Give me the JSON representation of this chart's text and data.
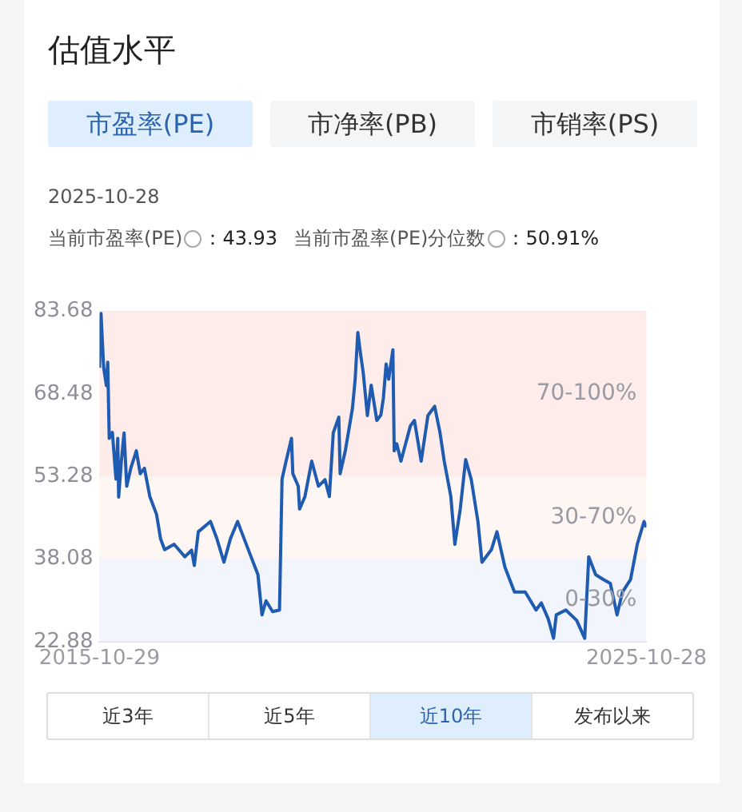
{
  "chart_data": {
    "type": "line",
    "title": "估值水平",
    "annotations": [
      "市盈率(PE)",
      "市净率(PB)",
      "市销率(PS)",
      "2025-10-28",
      "当前市盈率(PE)",
      "：43.93",
      "当前市盈率(PE)分位数",
      "：50.91%",
      "近3年",
      "近5年",
      "近10年",
      "发布以来"
    ],
    "x": [
      "2015-10-29",
      "2015-11-08",
      "2015-11-26",
      "2015-12-14",
      "2015-12-23",
      "2016-01-02",
      "2016-01-23",
      "2016-02-16",
      "2016-02-28",
      "2016-03-05",
      "2016-03-23",
      "2016-04-10",
      "2016-04-28",
      "2016-05-25",
      "2016-07-01",
      "2016-07-27",
      "2016-08-24",
      "2016-09-29",
      "2016-11-13",
      "2016-12-10",
      "2017-01-06",
      "2017-03-10",
      "2017-05-21",
      "2017-07-05",
      "2017-07-23",
      "2017-08-19",
      "2017-11-08",
      "2017-12-20",
      "2018-02-06",
      "2018-03-21",
      "2018-05-08",
      "2018-06-03",
      "2018-08-06",
      "2018-09-21",
      "2018-10-18",
      "2018-11-14",
      "2018-12-28",
      "2019-02-12",
      "2019-03-01",
      "2019-03-28",
      "2019-05-03",
      "2019-05-12",
      "2019-06-17",
      "2019-06-26",
      "2019-08-01",
      "2019-09-15",
      "2019-10-30",
      "2019-12-13",
      "2020-01-11",
      "2020-02-06",
      "2020-03-14",
      "2020-03-23",
      "2020-04-27",
      "2020-06-13",
      "2020-07-01",
      "2020-07-19",
      "2020-08-08",
      "2020-08-24",
      "2020-09-21",
      "2020-10-16",
      "2020-11-23",
      "2020-12-20",
      "2021-01-06",
      "2021-01-24",
      "2021-02-10",
      "2021-03-10",
      "2021-03-19",
      "2021-04-05",
      "2021-05-03",
      "2021-07-05",
      "2021-08-01",
      "2021-09-15",
      "2021-10-30",
      "2021-12-14",
      "2022-01-19",
      "2022-02-16",
      "2022-04-01",
      "2022-04-28",
      "2022-06-03",
      "2022-07-09",
      "2022-08-15",
      "2022-09-29",
      "2022-10-26",
      "2022-12-28",
      "2023-02-03",
      "2023-03-28",
      "2023-05-31",
      "2023-08-11",
      "2023-10-22",
      "2023-11-26",
      "2024-01-11",
      "2024-02-16",
      "2024-03-05",
      "2024-05-08",
      "2024-07-19",
      "2024-09-11",
      "2024-10-08",
      "2024-11-23",
      "2025-01-15",
      "2025-03-01",
      "2025-04-15",
      "2025-05-21",
      "2025-07-14",
      "2025-08-28",
      "2025-10-12",
      "2025-10-28"
    ],
    "series": [
      {
        "color": "#1f5bb0",
        "values": [
          73.3,
          83.3,
          73.3,
          70.0,
          74.3,
          60.3,
          61.4,
          52.8,
          60.3,
          49.5,
          56.1,
          61.3,
          51.5,
          54.8,
          58.0,
          53.8,
          54.8,
          49.6,
          46.3,
          41.8,
          39.8,
          40.8,
          38.5,
          39.7,
          36.9,
          43.1,
          45.0,
          41.9,
          37.5,
          41.8,
          45.0,
          43.1,
          38.5,
          35.2,
          27.8,
          30.4,
          28.4,
          28.7,
          52.8,
          56.1,
          60.3,
          53.8,
          51.5,
          47.3,
          49.6,
          56.1,
          51.5,
          52.7,
          49.6,
          61.3,
          64.2,
          53.8,
          58.1,
          65.8,
          71.1,
          79.8,
          75.5,
          72.4,
          64.5,
          70.1,
          63.6,
          64.6,
          67.8,
          74.0,
          71.2,
          76.6,
          58.0,
          59.3,
          56.1,
          62.6,
          63.6,
          56.1,
          64.5,
          66.2,
          61.3,
          56.1,
          49.6,
          40.8,
          47.3,
          56.4,
          52.8,
          45.0,
          37.5,
          39.8,
          43.1,
          36.6,
          32.0,
          32.0,
          28.7,
          30.0,
          27.1,
          23.5,
          27.8,
          28.7,
          26.8,
          23.5,
          38.5,
          35.2,
          34.3,
          33.6,
          27.8,
          32.0,
          34.3,
          40.8,
          45.0,
          43.93
        ]
      }
    ],
    "xlim": [
      "2015-10-29",
      "2025-10-28"
    ],
    "xticks": [
      "2015-10-29",
      "2025-10-28"
    ],
    "ylim": [
      22.88,
      83.68
    ],
    "yticks": [
      22.88,
      38.08,
      53.28,
      68.48,
      83.68
    ],
    "bands": [
      {
        "axis": "y",
        "from": 53.28,
        "to": 83.68,
        "label": "70-100%",
        "color": "#fdecea"
      },
      {
        "axis": "y",
        "from": 38.08,
        "to": 53.28,
        "label": "30-70%",
        "color": "#fdf6f2"
      },
      {
        "axis": "y",
        "from": 22.88,
        "to": 38.08,
        "label": "0-30%",
        "color": "#f2f5fc"
      }
    ],
    "grid": "y",
    "legend": false,
    "marker": "none",
    "line_style": "solid"
  }
}
